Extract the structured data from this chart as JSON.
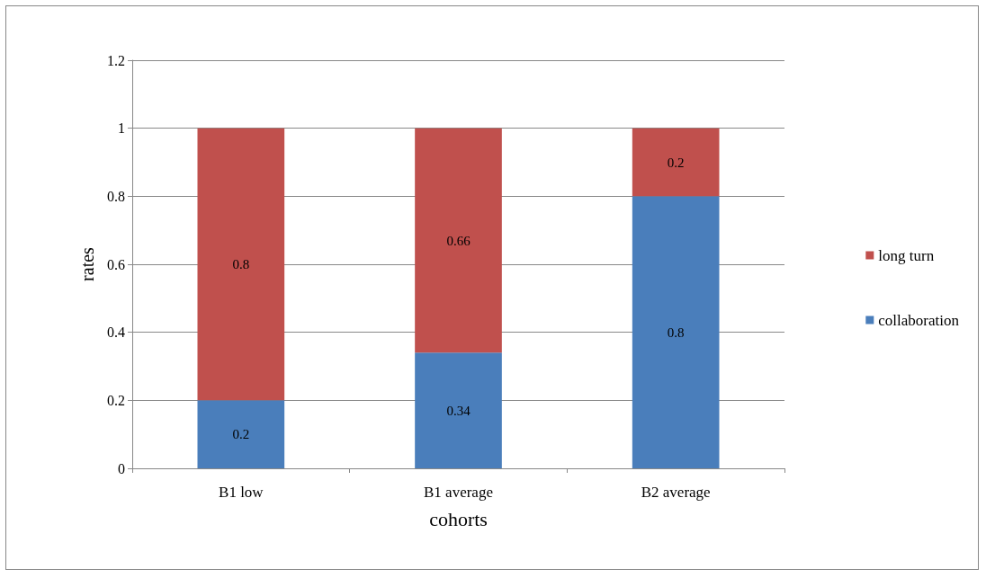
{
  "chart_data": {
    "type": "bar",
    "stacked": true,
    "xlabel": "cohorts",
    "ylabel": "rates",
    "categories": [
      "B1 low",
      "B1 average",
      "B2 average"
    ],
    "series": [
      {
        "name": "collaboration",
        "color": "#4a7ebb",
        "values": [
          0.2,
          0.34,
          0.8
        ]
      },
      {
        "name": "long turn",
        "color": "#c0504d",
        "values": [
          0.8,
          0.66,
          0.2
        ]
      }
    ],
    "ylim": [
      0,
      1.2
    ],
    "yticks": [
      0,
      0.2,
      0.4,
      0.6,
      0.8,
      1,
      1.2
    ],
    "grid": "y",
    "legend": "right",
    "data_labels": true
  }
}
